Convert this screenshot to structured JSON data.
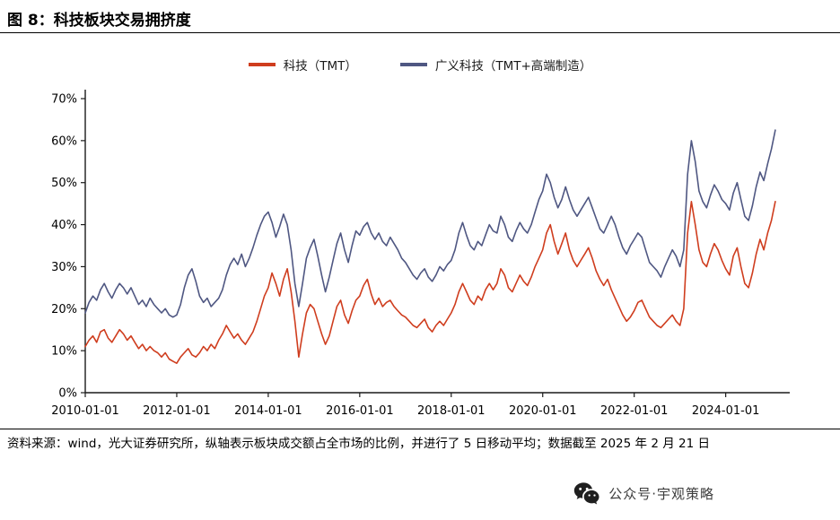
{
  "title": "图 8：科技板块交易拥挤度",
  "legend": [
    {
      "label": "科技（TMT）",
      "color": "#cf3d1e"
    },
    {
      "label": "广义科技（TMT+高端制造）",
      "color": "#4f5782"
    }
  ],
  "footer": {
    "text": "资料来源：wind，光大证券研究所，纵轴表示板块成交额占全市场的比例，并进行了 5 日移动平均；数据截至 2025 年 2 月 21 日"
  },
  "watermark": {
    "icon": "wechat-icon",
    "text": "公众号·宇观策略"
  },
  "chart_data": {
    "type": "line",
    "title": "科技板块交易拥挤度",
    "xlabel": "",
    "ylabel": "板块成交额占全市场的比例（5日移动平均）",
    "xlim": [
      2010.0,
      2025.4
    ],
    "ylim": [
      0,
      70
    ],
    "grid": false,
    "legend_position": "top-center",
    "axis_color": "#1a1a1a",
    "tick_label_color": "#000000",
    "x_start": 2010.0,
    "x_step": 0.0833333,
    "yticks": [
      {
        "value": 0,
        "label": "0%"
      },
      {
        "value": 10,
        "label": "10%"
      },
      {
        "value": 20,
        "label": "20%"
      },
      {
        "value": 30,
        "label": "30%"
      },
      {
        "value": 40,
        "label": "40%"
      },
      {
        "value": 50,
        "label": "50%"
      },
      {
        "value": 60,
        "label": "60%"
      },
      {
        "value": 70,
        "label": "70%"
      }
    ],
    "xticks": [
      {
        "value": 2010,
        "label": "2010-01-01"
      },
      {
        "value": 2012,
        "label": "2012-01-01"
      },
      {
        "value": 2014,
        "label": "2014-01-01"
      },
      {
        "value": 2016,
        "label": "2016-01-01"
      },
      {
        "value": 2018,
        "label": "2018-01-01"
      },
      {
        "value": 2020,
        "label": "2020-01-01"
      },
      {
        "value": 2022,
        "label": "2022-01-01"
      },
      {
        "value": 2024,
        "label": "2024-01-01"
      }
    ],
    "series": [
      {
        "name": "科技（TMT）",
        "color": "#cf3d1e",
        "values": [
          11,
          12.5,
          13.5,
          12,
          14.5,
          15,
          13,
          12,
          13.5,
          15,
          14,
          12.5,
          13.5,
          12,
          10.5,
          11.5,
          10,
          11,
          10,
          9.5,
          8.5,
          9.5,
          8,
          7.5,
          7,
          8.5,
          9.5,
          10.5,
          9,
          8.5,
          9.5,
          11,
          10,
          11.5,
          10.5,
          12.5,
          14,
          16,
          14.5,
          13,
          14,
          12.5,
          11.5,
          13,
          14.5,
          17,
          20,
          23,
          25,
          28.5,
          26,
          23,
          27,
          29.5,
          24,
          17,
          8.5,
          14,
          19,
          21,
          20,
          17,
          14,
          11.5,
          13.5,
          17,
          20.5,
          22,
          18.5,
          16.5,
          19.5,
          22,
          23,
          25.5,
          27,
          23.5,
          21,
          22.5,
          20.5,
          21.5,
          22,
          20.5,
          19.5,
          18.5,
          18,
          17,
          16,
          15.5,
          16.5,
          17.5,
          15.5,
          14.5,
          16,
          17,
          16,
          17.5,
          19,
          21,
          24,
          26,
          24,
          22,
          21,
          23,
          22,
          24.5,
          26,
          24.5,
          26,
          29.5,
          28,
          25,
          24,
          26,
          28,
          26.5,
          25.5,
          27.5,
          30,
          32,
          34,
          38,
          40,
          36,
          33,
          35.5,
          38,
          34,
          31.5,
          30,
          31.5,
          33,
          34.5,
          32,
          29,
          27,
          25.5,
          27,
          24.5,
          22.5,
          20.5,
          18.5,
          17,
          18,
          19.5,
          21.5,
          22,
          20,
          18,
          17,
          16,
          15.5,
          16.5,
          17.5,
          18.5,
          17,
          16,
          20,
          38,
          45.5,
          40,
          34,
          31,
          30,
          33,
          35.5,
          34,
          31.5,
          29.5,
          28,
          32.5,
          34.5,
          30,
          26,
          25,
          28.5,
          33,
          36.5,
          34,
          38,
          41,
          45.5
        ]
      },
      {
        "name": "广义科技（TMT+高端制造）",
        "color": "#4f5782",
        "values": [
          19,
          21.5,
          23,
          22,
          24.5,
          26,
          24,
          22.5,
          24.5,
          26,
          25,
          23.5,
          25,
          23,
          21,
          22,
          20.5,
          22.5,
          21,
          20,
          19,
          20,
          18.5,
          18,
          18.5,
          21,
          25,
          28,
          29.5,
          26.5,
          23,
          21.5,
          22.5,
          20.5,
          21.5,
          22.5,
          24.5,
          28,
          30.5,
          32,
          30.5,
          33,
          30,
          32,
          34.5,
          37.5,
          40,
          42,
          43,
          40.5,
          37,
          39.5,
          42.5,
          40,
          34,
          26,
          20.5,
          26,
          32,
          34.5,
          36.5,
          32.5,
          28,
          24,
          27.5,
          31.5,
          35.5,
          38,
          34,
          31,
          35,
          38.5,
          37.5,
          39.5,
          40.5,
          38,
          36.5,
          38,
          36,
          35,
          37,
          35.5,
          34,
          32,
          31,
          29.5,
          28,
          27,
          28.5,
          29.5,
          27.5,
          26.5,
          28,
          30,
          29,
          30.5,
          31.5,
          34,
          38,
          40.5,
          37.5,
          35,
          34,
          36,
          35,
          37.5,
          40,
          38.5,
          38,
          42,
          40,
          37,
          36,
          38.5,
          40.5,
          39,
          38,
          40,
          43,
          46,
          48,
          52,
          50,
          46.5,
          44,
          46,
          49,
          46,
          43.5,
          42,
          43.5,
          45,
          46.5,
          44,
          41.5,
          39,
          38,
          40,
          42,
          40,
          37,
          34.5,
          33,
          35,
          36.5,
          38,
          37,
          34,
          31,
          30,
          29,
          27.5,
          30,
          32,
          34,
          32.5,
          30,
          34,
          52,
          60,
          55,
          48,
          45.5,
          44,
          47,
          49.5,
          48,
          46,
          45,
          43.5,
          47.5,
          50,
          46,
          42,
          41,
          44.5,
          49,
          52.5,
          50.5,
          54.5,
          58,
          62.5
        ]
      }
    ]
  }
}
